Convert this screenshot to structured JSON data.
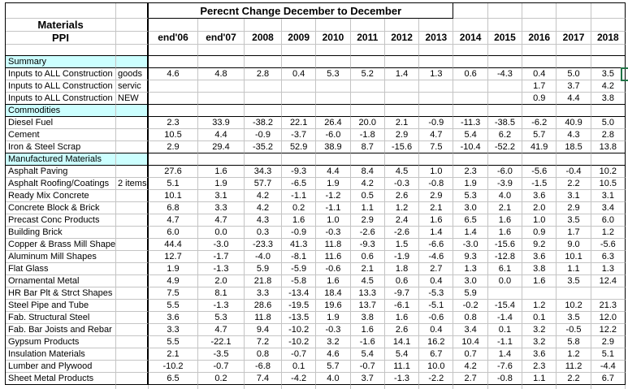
{
  "colors": {
    "section_fill": "#CCFFFF",
    "grid_line": "#C4C4C4",
    "border_black": "#000000",
    "selection_green": "#217346"
  },
  "table": {
    "title": "Perecnt Change December to December",
    "corner_title_line1": "Materials",
    "corner_title_line2": "PPI",
    "year_columns": [
      "end'06",
      "end'07",
      "2008",
      "2009",
      "2010",
      "2011",
      "2012",
      "2013",
      "2014",
      "2015",
      "2016",
      "2017",
      "2018"
    ],
    "sections": [
      {
        "header": "Summary",
        "rows": [
          {
            "label": "Inputs to ALL Construction",
            "sub": "goods",
            "values": [
              "4.6",
              "4.8",
              "2.8",
              "0.4",
              "5.3",
              "5.2",
              "1.4",
              "1.3",
              "0.6",
              "-4.3",
              "0.4",
              "5.0",
              "3.5"
            ]
          },
          {
            "label": "Inputs to ALL Construction",
            "sub": "servic",
            "values": [
              "",
              "",
              "",
              "",
              "",
              "",
              "",
              "",
              "",
              "",
              "1.7",
              "3.7",
              "4.2"
            ]
          },
          {
            "label": "Inputs to ALL Construction",
            "sub": "NEW",
            "values": [
              "",
              "",
              "",
              "",
              "",
              "",
              "",
              "",
              "",
              "",
              "0.9",
              "4.4",
              "3.8"
            ]
          }
        ]
      },
      {
        "header": "Commodities",
        "rows": [
          {
            "label": "Diesel Fuel",
            "sub": "",
            "values": [
              "2.3",
              "33.9",
              "-38.2",
              "22.1",
              "26.4",
              "20.0",
              "2.1",
              "-0.9",
              "-11.3",
              "-38.5",
              "-6.2",
              "40.9",
              "5.0"
            ]
          },
          {
            "label": "Cement",
            "sub": "",
            "values": [
              "10.5",
              "4.4",
              "-0.9",
              "-3.7",
              "-6.0",
              "-1.8",
              "2.9",
              "4.7",
              "5.4",
              "6.2",
              "5.7",
              "4.3",
              "2.8"
            ]
          },
          {
            "label": "Iron & Steel Scrap",
            "sub": "",
            "values": [
              "2.9",
              "29.4",
              "-35.2",
              "52.9",
              "38.9",
              "8.7",
              "-15.6",
              "7.5",
              "-10.4",
              "-52.2",
              "41.9",
              "18.5",
              "13.8"
            ]
          }
        ]
      },
      {
        "header": "Manufactured Materials",
        "rows": [
          {
            "label": "Asphalt Paving",
            "sub": "",
            "values": [
              "27.6",
              "1.6",
              "34.3",
              "-9.3",
              "4.4",
              "8.4",
              "4.5",
              "1.0",
              "2.3",
              "-6.0",
              "-5.6",
              "-0.4",
              "10.2"
            ]
          },
          {
            "label": "Asphalt Roofing/Coatings",
            "sub": "2 items",
            "values": [
              "5.1",
              "1.9",
              "57.7",
              "-6.5",
              "1.9",
              "4.2",
              "-0.3",
              "-0.8",
              "1.9",
              "-3.9",
              "-1.5",
              "2.2",
              "10.5"
            ]
          },
          {
            "label": "Ready Mix Concrete",
            "sub": "",
            "values": [
              "10.1",
              "3.1",
              "4.2",
              "-1.1",
              "-1.2",
              "0.5",
              "2.6",
              "2.9",
              "5.3",
              "4.0",
              "3.6",
              "3.1",
              "3.1"
            ]
          },
          {
            "label": "Concrete Block & Brick",
            "sub": "",
            "values": [
              "6.8",
              "3.3",
              "4.2",
              "0.2",
              "-1.1",
              "1.1",
              "1.2",
              "2.1",
              "3.0",
              "2.1",
              "2.0",
              "2.9",
              "3.4"
            ]
          },
          {
            "label": "Precast Conc Products",
            "sub": "",
            "values": [
              "4.7",
              "4.7",
              "4.3",
              "1.6",
              "1.0",
              "2.9",
              "2.4",
              "1.6",
              "6.5",
              "1.6",
              "1.0",
              "3.5",
              "6.0"
            ]
          },
          {
            "label": "Building Brick",
            "sub": "",
            "values": [
              "6.0",
              "0.0",
              "0.3",
              "-0.9",
              "-0.3",
              "-2.6",
              "-2.6",
              "1.4",
              "1.4",
              "1.6",
              "0.9",
              "1.7",
              "1.2"
            ]
          },
          {
            "label": "Copper & Brass Mill Shapes",
            "sub": "",
            "values": [
              "44.4",
              "-3.0",
              "-23.3",
              "41.3",
              "11.8",
              "-9.3",
              "1.5",
              "-6.6",
              "-3.0",
              "-15.6",
              "9.2",
              "9.0",
              "-5.6"
            ]
          },
          {
            "label": "Aluminum Mill Shapes",
            "sub": "",
            "values": [
              "12.7",
              "-1.7",
              "-4.0",
              "-8.1",
              "11.6",
              "0.6",
              "-1.9",
              "-4.6",
              "9.3",
              "-12.8",
              "3.6",
              "10.1",
              "6.3"
            ]
          },
          {
            "label": "Flat Glass",
            "sub": "",
            "values": [
              "1.9",
              "-1.3",
              "5.9",
              "-5.9",
              "-0.6",
              "2.1",
              "1.8",
              "2.7",
              "1.3",
              "6.1",
              "3.8",
              "1.1",
              "1.3"
            ]
          },
          {
            "label": "Ornamental Metal",
            "sub": "",
            "values": [
              "4.9",
              "2.0",
              "21.8",
              "-5.8",
              "1.6",
              "4.5",
              "0.6",
              "0.4",
              "3.0",
              "0.0",
              "1.6",
              "3.5",
              "12.4"
            ]
          },
          {
            "label": "HR Bar Plt & Strct Shapes",
            "sub": "",
            "values": [
              "7.5",
              "8.1",
              "3.3",
              "-13.4",
              "18.4",
              "13.3",
              "-9.7",
              "-5.3",
              "5.9",
              "",
              "",
              "",
              ""
            ]
          },
          {
            "label": "Steel Pipe and Tube",
            "sub": "",
            "values": [
              "5.5",
              "-1.3",
              "28.6",
              "-19.5",
              "19.6",
              "13.7",
              "-6.1",
              "-5.1",
              "-0.2",
              "-15.4",
              "1.2",
              "10.2",
              "21.3"
            ]
          },
          {
            "label": "Fab. Structural Steel",
            "sub": "",
            "values": [
              "3.6",
              "5.3",
              "11.8",
              "-13.5",
              "1.9",
              "3.8",
              "1.6",
              "-0.6",
              "0.8",
              "-1.4",
              "0.1",
              "3.5",
              "12.0"
            ]
          },
          {
            "label": "Fab. Bar Joists and Rebar",
            "sub": "",
            "values": [
              "3.3",
              "4.7",
              "9.4",
              "-10.2",
              "-0.3",
              "1.6",
              "2.6",
              "0.4",
              "3.4",
              "0.1",
              "3.2",
              "-0.5",
              "12.2"
            ]
          },
          {
            "label": "Gypsum Products",
            "sub": "",
            "values": [
              "5.5",
              "-22.1",
              "7.2",
              "-10.2",
              "3.2",
              "-1.6",
              "14.1",
              "16.2",
              "10.4",
              "-1.1",
              "3.2",
              "5.8",
              "2.9"
            ]
          },
          {
            "label": "Insulation Materials",
            "sub": "",
            "values": [
              "2.1",
              "-3.5",
              "0.8",
              "-0.7",
              "4.6",
              "5.4",
              "5.4",
              "6.7",
              "0.7",
              "1.4",
              "3.6",
              "1.2",
              "5.1"
            ]
          },
          {
            "label": "Lumber and Plywood",
            "sub": "",
            "values": [
              "-10.2",
              "-0.7",
              "-6.8",
              "0.1",
              "5.7",
              "-0.7",
              "11.1",
              "10.0",
              "4.2",
              "-7.6",
              "2.3",
              "11.2",
              "-4.4"
            ]
          },
          {
            "label": "Sheet Metal Products",
            "sub": "",
            "values": [
              "6.5",
              "0.2",
              "7.4",
              "-4.2",
              "4.0",
              "3.7",
              "-1.3",
              "-2.2",
              "2.7",
              "-0.8",
              "1.1",
              "2.2",
              "6.7"
            ]
          }
        ]
      }
    ]
  }
}
